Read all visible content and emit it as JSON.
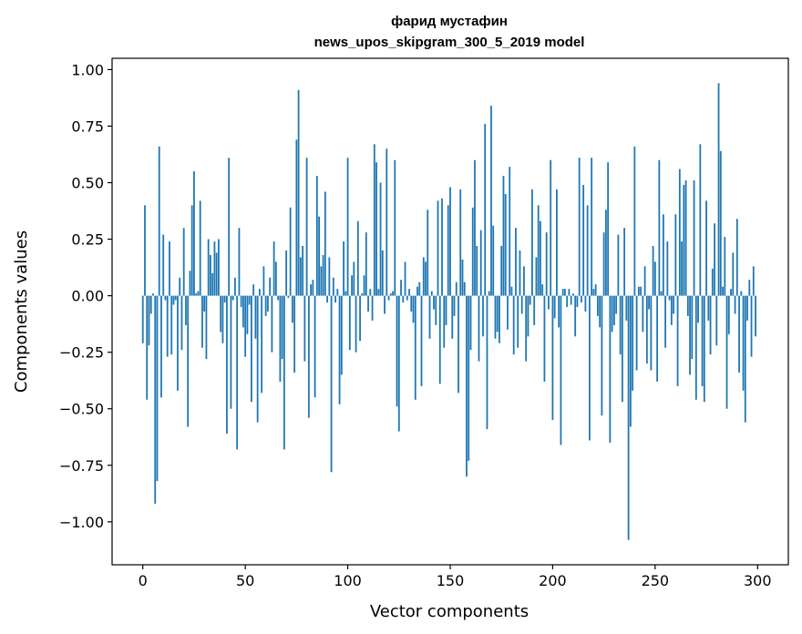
{
  "chart_data": {
    "type": "bar",
    "title": "фарид мустафин",
    "subtitle": "news_upos_skipgram_300_5_2019 model",
    "xlabel": "Vector components",
    "ylabel": "Components values",
    "xlim": [
      -15,
      315
    ],
    "ylim": [
      -1.19,
      1.05
    ],
    "x_ticks": [
      0,
      50,
      100,
      150,
      200,
      250,
      300
    ],
    "y_ticks": [
      1.0,
      0.75,
      0.5,
      0.25,
      0.0,
      -0.25,
      -0.5,
      -0.75,
      -1.0
    ],
    "x_tick_labels": [
      "0",
      "50",
      "100",
      "150",
      "200",
      "250",
      "300"
    ],
    "y_tick_labels": [
      "1.00",
      "0.75",
      "0.50",
      "0.25",
      "0.00",
      "−0.25",
      "−0.50",
      "−0.75",
      "−1.00"
    ],
    "grid": false,
    "bar_color": "#1f77b4",
    "values": [
      -0.21,
      0.4,
      -0.46,
      -0.22,
      -0.08,
      0.01,
      -0.92,
      -0.82,
      0.66,
      -0.45,
      0.27,
      -0.02,
      -0.27,
      0.24,
      -0.26,
      -0.04,
      -0.02,
      -0.42,
      0.08,
      -0.24,
      0.3,
      -0.13,
      -0.58,
      0.11,
      0.4,
      0.55,
      0.01,
      0.02,
      0.42,
      -0.23,
      -0.07,
      -0.28,
      0.25,
      0.18,
      0.1,
      0.24,
      0.19,
      0.25,
      -0.16,
      -0.21,
      -0.03,
      -0.61,
      0.61,
      -0.5,
      -0.02,
      0.08,
      -0.68,
      0.3,
      -0.05,
      -0.14,
      -0.27,
      -0.17,
      -0.04,
      -0.47,
      0.05,
      -0.19,
      -0.56,
      0.03,
      -0.43,
      0.13,
      -0.09,
      -0.07,
      0.08,
      -0.25,
      0.24,
      0.15,
      -0.02,
      -0.38,
      -0.28,
      -0.68,
      0.2,
      -0.01,
      0.39,
      -0.12,
      -0.34,
      0.69,
      0.91,
      0.17,
      0.22,
      -0.29,
      0.61,
      -0.54,
      0.05,
      0.07,
      -0.45,
      0.53,
      0.35,
      0.13,
      0.18,
      0.46,
      -0.03,
      0.17,
      -0.78,
      0.08,
      -0.03,
      0.03,
      -0.48,
      -0.35,
      0.24,
      0.02,
      0.61,
      -0.24,
      0.09,
      0.15,
      -0.25,
      0.33,
      -0.2,
      0.01,
      0.09,
      0.28,
      -0.07,
      0.03,
      -0.11,
      0.67,
      0.59,
      0.03,
      0.5,
      0.2,
      -0.08,
      0.65,
      -0.02,
      0.01,
      0.02,
      0.6,
      -0.49,
      -0.6,
      0.07,
      -0.03,
      0.15,
      -0.02,
      0.03,
      -0.07,
      -0.12,
      -0.46,
      0.04,
      0.06,
      -0.4,
      0.17,
      0.15,
      0.38,
      -0.19,
      0.02,
      -0.06,
      -0.13,
      0.42,
      -0.39,
      0.43,
      -0.23,
      -0.13,
      0.4,
      0.48,
      -0.19,
      -0.09,
      0.06,
      -0.43,
      0.47,
      0.16,
      0.06,
      -0.8,
      -0.73,
      -0.24,
      0.39,
      0.6,
      0.22,
      -0.29,
      0.29,
      -0.18,
      0.76,
      -0.59,
      0.02,
      0.84,
      0.31,
      -0.19,
      -0.16,
      -0.21,
      0.22,
      0.53,
      0.45,
      -0.15,
      0.57,
      0.04,
      -0.26,
      0.3,
      -0.23,
      0.2,
      -0.08,
      0.13,
      -0.29,
      -0.18,
      -0.04,
      0.47,
      -0.13,
      0.17,
      0.4,
      0.33,
      0.05,
      -0.38,
      0.28,
      -0.06,
      0.6,
      -0.55,
      -0.1,
      0.47,
      -0.14,
      -0.66,
      0.03,
      0.03,
      -0.05,
      0.03,
      -0.04,
      0.01,
      -0.18,
      -0.05,
      0.61,
      -0.03,
      0.49,
      -0.07,
      0.4,
      -0.64,
      0.61,
      0.03,
      0.05,
      -0.09,
      -0.14,
      -0.53,
      0.28,
      0.38,
      0.59,
      -0.65,
      -0.16,
      -0.13,
      -0.08,
      0.27,
      -0.26,
      -0.47,
      0.3,
      -0.11,
      -1.08,
      -0.58,
      -0.42,
      0.66,
      -0.33,
      0.04,
      0.04,
      -0.16,
      0.13,
      -0.3,
      -0.06,
      -0.33,
      0.22,
      0.15,
      -0.38,
      0.6,
      0.02,
      0.36,
      -0.23,
      0.24,
      -0.02,
      -0.13,
      -0.08,
      0.36,
      -0.4,
      0.56,
      0.24,
      0.49,
      0.51,
      -0.09,
      -0.35,
      -0.28,
      0.51,
      -0.46,
      -0.12,
      0.67,
      -0.4,
      -0.47,
      0.42,
      -0.11,
      -0.26,
      0.12,
      0.32,
      -0.22,
      0.94,
      0.64,
      0.04,
      0.26,
      -0.5,
      -0.17,
      0.03,
      0.19,
      -0.08,
      0.34,
      -0.34,
      0.02,
      -0.42,
      -0.56,
      -0.11,
      0.07,
      -0.27,
      0.13,
      -0.18
    ]
  }
}
